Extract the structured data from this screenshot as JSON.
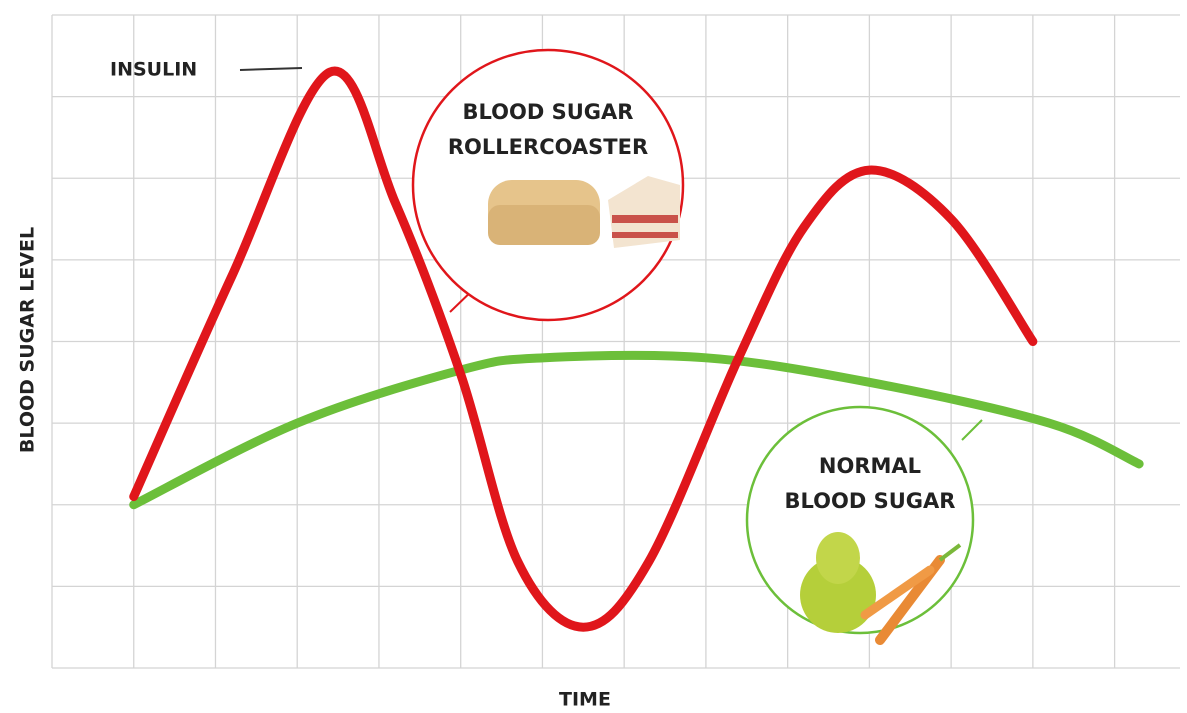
{
  "chart_data": {
    "type": "line",
    "xlabel": "TIME",
    "ylabel": "BLOOD SUGAR LEVEL",
    "annotations": {
      "insulin": "INSULIN",
      "rollercoaster": [
        "BLOOD SUGAR",
        "ROLLERCOASTER"
      ],
      "normal": [
        "NORMAL",
        "BLOOD SUGAR"
      ]
    },
    "xlim": [
      0,
      13.8
    ],
    "ylim": [
      0,
      8
    ],
    "xticks": [
      0,
      1,
      2,
      3,
      4,
      5,
      6,
      7,
      8,
      9,
      10,
      11,
      12,
      13
    ],
    "yticks": [
      0,
      1,
      2,
      3,
      4,
      5,
      6,
      7,
      8
    ],
    "grid": true,
    "series": [
      {
        "name": "INSULIN",
        "color": "#e0161b",
        "x": [
          1,
          2.2,
          3.4,
          4.2,
          5,
          5.7,
          6.5,
          7.3,
          8.4,
          9.2,
          10,
          11,
          12
        ],
        "values": [
          2.1,
          4.8,
          7.3,
          5.7,
          3.6,
          1.3,
          0.5,
          1.3,
          3.8,
          5.4,
          6.1,
          5.5,
          4
        ]
      },
      {
        "name": "NORMAL BLOOD SUGAR",
        "color": "#6cbf3a",
        "x": [
          1,
          3,
          5,
          6,
          8,
          10,
          12.2,
          13.3
        ],
        "values": [
          2,
          3,
          3.65,
          3.8,
          3.8,
          3.5,
          3,
          2.5
        ]
      }
    ]
  }
}
